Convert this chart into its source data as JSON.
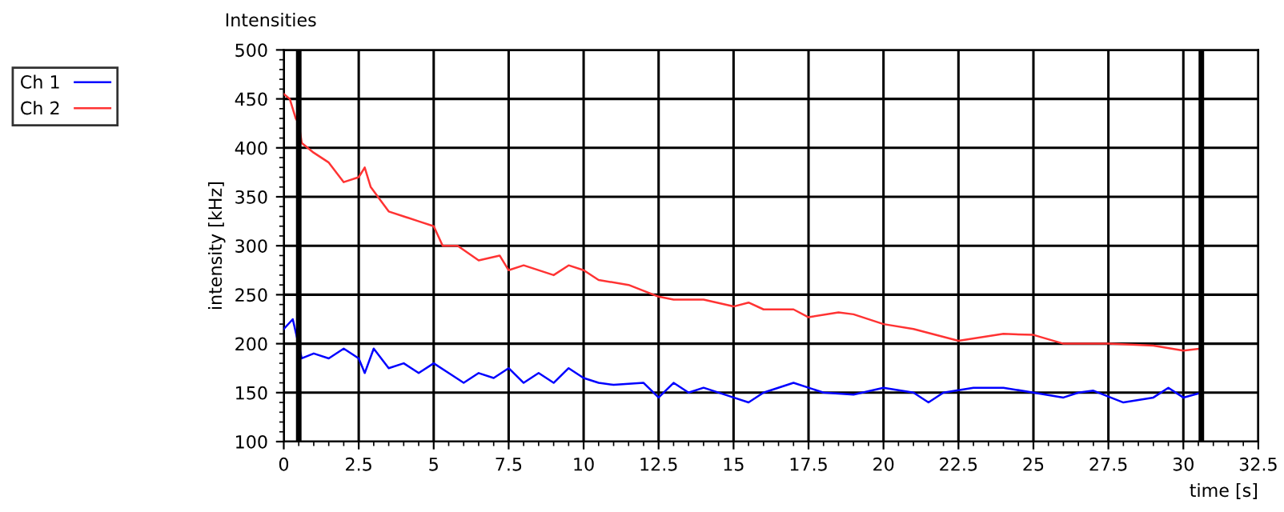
{
  "chart_data": {
    "type": "line",
    "title": "Intensities",
    "xlabel": "time [s]",
    "ylabel": "intensity [kHz]",
    "xlim": [
      0,
      32.5
    ],
    "ylim": [
      100,
      500
    ],
    "xticks": [
      0,
      2.5,
      5,
      7.5,
      10,
      12.5,
      15,
      17.5,
      20,
      22.5,
      25,
      27.5,
      30,
      32.5
    ],
    "yticks": [
      100,
      150,
      200,
      250,
      300,
      350,
      400,
      450,
      500
    ],
    "grid": true,
    "legend": "top left",
    "marker": "none",
    "line_style": "solid",
    "ref_lines": [
      {
        "axis": "x",
        "value": 0.5,
        "label": null,
        "color": "#000000"
      },
      {
        "axis": "x",
        "value": 30.6,
        "label": null,
        "color": "#000000"
      }
    ],
    "series": [
      {
        "name": "Ch 1",
        "color": "#0000ff",
        "x": [
          0,
          0.3,
          0.6,
          1,
          1.5,
          2,
          2.5,
          2.7,
          3,
          3.5,
          4,
          4.5,
          5,
          5.5,
          6,
          6.5,
          7,
          7.5,
          8,
          8.5,
          9,
          9.5,
          10,
          10.5,
          11,
          12,
          12.5,
          13,
          13.5,
          14,
          15,
          15.5,
          16,
          17,
          17.5,
          18,
          19,
          20,
          21,
          21.5,
          22,
          23,
          24,
          25,
          26,
          26.5,
          27,
          28,
          29,
          29.5,
          30,
          30.6
        ],
        "values": [
          215,
          225,
          185,
          190,
          185,
          195,
          185,
          170,
          195,
          175,
          180,
          170,
          180,
          170,
          160,
          170,
          165,
          175,
          160,
          170,
          160,
          175,
          165,
          160,
          158,
          160,
          145,
          160,
          150,
          155,
          145,
          140,
          150,
          160,
          155,
          150,
          148,
          155,
          150,
          140,
          150,
          155,
          155,
          150,
          145,
          150,
          152,
          140,
          145,
          155,
          145,
          150
        ]
      },
      {
        "name": "Ch 2",
        "color": "#ff3333",
        "x": [
          0,
          0.2,
          0.4,
          0.5,
          0.6,
          1,
          1.5,
          2,
          2.5,
          2.7,
          2.9,
          3.5,
          4,
          4.5,
          5,
          5.3,
          5.8,
          6.5,
          7.2,
          7.5,
          8,
          9,
          9.5,
          10,
          10.5,
          11.5,
          12.5,
          13,
          14,
          15,
          15.5,
          16,
          17,
          17.5,
          18.5,
          19,
          20,
          21,
          22.5,
          24,
          25,
          26,
          27.5,
          29,
          30,
          30.6
        ],
        "values": [
          455,
          450,
          430,
          425,
          405,
          395,
          385,
          365,
          370,
          380,
          360,
          335,
          330,
          325,
          320,
          300,
          300,
          285,
          290,
          275,
          280,
          270,
          280,
          275,
          265,
          260,
          248,
          245,
          245,
          238,
          242,
          235,
          235,
          227,
          232,
          230,
          220,
          215,
          203,
          210,
          209,
          200,
          200,
          198,
          193,
          195
        ]
      }
    ]
  }
}
